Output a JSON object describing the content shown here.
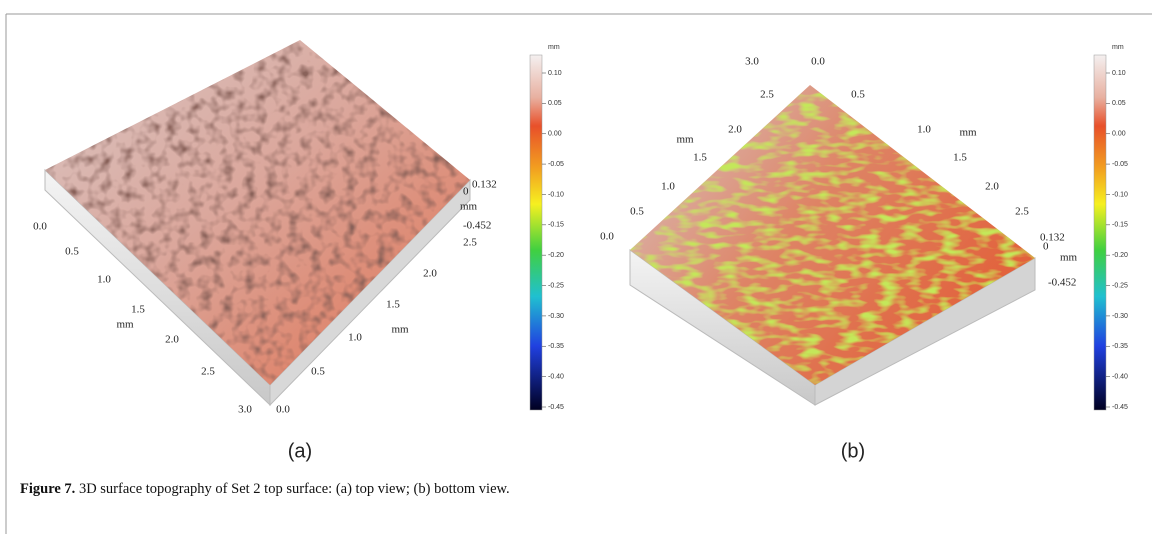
{
  "figure": {
    "panels": [
      {
        "label": "(a)",
        "axis_1": {
          "ticks": [
            "0.0",
            "0.5",
            "1.0",
            "1.5",
            "2.0",
            "2.5",
            "3.0"
          ],
          "label": "mm"
        },
        "axis_2": {
          "ticks": [
            "0.0",
            "0.5",
            "1.0",
            "1.5",
            "2.0",
            "2.5"
          ],
          "label": "mm"
        },
        "z_axis": {
          "ticks": [
            "0.132",
            "0",
            "-0.452"
          ],
          "label": "mm"
        },
        "colorbar": {
          "unit": "mm",
          "ticks": [
            "0.10",
            "0.05",
            "0.00",
            "-0.05",
            "-0.10",
            "-0.15",
            "-0.20",
            "-0.25",
            "-0.30",
            "-0.35",
            "-0.40",
            "-0.45"
          ]
        }
      },
      {
        "label": "(b)",
        "axis_1": {
          "ticks": [
            "0.0",
            "0.5",
            "1.0",
            "1.5",
            "2.0",
            "2.5",
            "3.0"
          ],
          "label": "mm"
        },
        "axis_2": {
          "ticks": [
            "0.0",
            "0.5",
            "1.0",
            "1.5",
            "2.0",
            "2.5"
          ],
          "label": "mm"
        },
        "z_axis": {
          "ticks": [
            "0.132",
            "0",
            "-0.452"
          ],
          "label": "mm"
        },
        "colorbar": {
          "unit": "mm",
          "ticks": [
            "0.10",
            "0.05",
            "0.00",
            "-0.05",
            "-0.10",
            "-0.15",
            "-0.20",
            "-0.25",
            "-0.30",
            "-0.35",
            "-0.40",
            "-0.45"
          ]
        }
      }
    ],
    "caption": {
      "number": "Figure 7.",
      "text": "3D surface topography of Set 2 top surface: (a) top view; (b) bottom view."
    }
  }
}
